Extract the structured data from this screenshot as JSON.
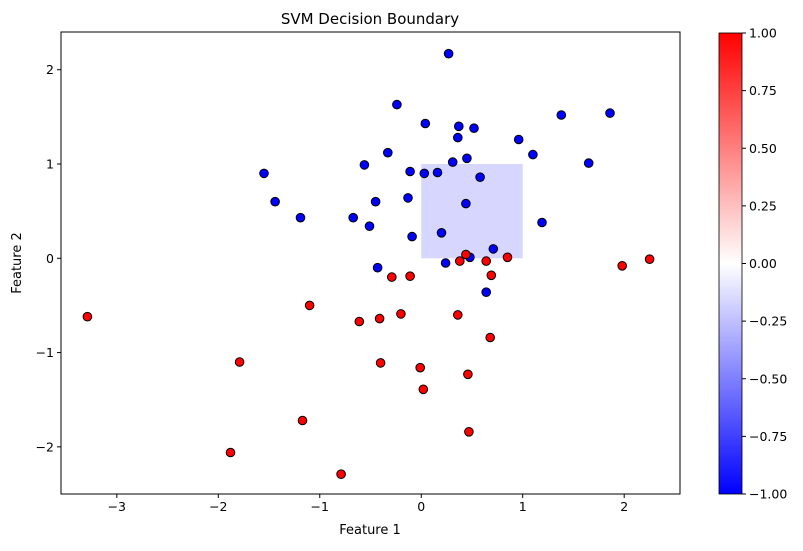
{
  "chart_data": {
    "type": "scatter",
    "title": "SVM Decision Boundary",
    "xlabel": "Feature 1",
    "ylabel": "Feature 2",
    "xlim": [
      -3.55,
      2.55
    ],
    "ylim": [
      -2.5,
      2.4
    ],
    "xticks": [
      -3,
      -2,
      -1,
      0,
      1,
      2
    ],
    "yticks": [
      -2,
      -1,
      0,
      1,
      2
    ],
    "grid": false,
    "decision_region": {
      "x": [
        0,
        1
      ],
      "y": [
        0,
        1
      ],
      "value": -0.2,
      "color": "#d6d6fe"
    },
    "colors": {
      "class_blue": "#0000ff",
      "class_red": "#ff0000",
      "marker_edge": "#000000"
    },
    "series": [
      {
        "class": -1,
        "points": [
          [
            0.27,
            2.17
          ],
          [
            -0.24,
            1.63
          ],
          [
            0.04,
            1.43
          ],
          [
            0.37,
            1.4
          ],
          [
            0.52,
            1.38
          ],
          [
            0.36,
            1.28
          ],
          [
            0.96,
            1.26
          ],
          [
            1.38,
            1.52
          ],
          [
            1.86,
            1.54
          ],
          [
            -0.33,
            1.12
          ],
          [
            1.1,
            1.1
          ],
          [
            0.45,
            1.06
          ],
          [
            0.31,
            1.02
          ],
          [
            -0.56,
            0.99
          ],
          [
            1.65,
            1.01
          ],
          [
            -1.55,
            0.9
          ],
          [
            -0.11,
            0.92
          ],
          [
            0.03,
            0.9
          ],
          [
            0.16,
            0.91
          ],
          [
            0.58,
            0.86
          ],
          [
            -0.13,
            0.64
          ],
          [
            -1.44,
            0.6
          ],
          [
            -0.45,
            0.6
          ],
          [
            0.44,
            0.58
          ],
          [
            -0.67,
            0.43
          ],
          [
            -1.19,
            0.43
          ],
          [
            -0.51,
            0.34
          ],
          [
            1.19,
            0.38
          ],
          [
            0.2,
            0.27
          ],
          [
            -0.09,
            0.23
          ],
          [
            0.71,
            0.1
          ],
          [
            0.24,
            -0.05
          ],
          [
            0.48,
            0.01
          ],
          [
            -0.43,
            -0.1
          ],
          [
            0.64,
            -0.36
          ]
        ]
      },
      {
        "class": 1,
        "points": [
          [
            0.44,
            0.04
          ],
          [
            0.38,
            -0.03
          ],
          [
            0.64,
            -0.03
          ],
          [
            0.85,
            0.01
          ],
          [
            2.25,
            -0.01
          ],
          [
            1.98,
            -0.08
          ],
          [
            0.69,
            -0.18
          ],
          [
            -0.29,
            -0.2
          ],
          [
            -0.11,
            -0.19
          ],
          [
            -1.1,
            -0.5
          ],
          [
            -0.2,
            -0.59
          ],
          [
            0.36,
            -0.6
          ],
          [
            -0.41,
            -0.64
          ],
          [
            -0.61,
            -0.67
          ],
          [
            -3.29,
            -0.62
          ],
          [
            0.68,
            -0.84
          ],
          [
            -1.79,
            -1.1
          ],
          [
            -0.4,
            -1.11
          ],
          [
            -0.01,
            -1.16
          ],
          [
            0.46,
            -1.23
          ],
          [
            0.02,
            -1.39
          ],
          [
            -1.17,
            -1.72
          ],
          [
            0.47,
            -1.84
          ],
          [
            -1.88,
            -2.06
          ],
          [
            -0.79,
            -2.29
          ]
        ]
      }
    ],
    "colorbar": {
      "range": [
        -1.0,
        1.0
      ],
      "ticks": [
        "1.00",
        "0.75",
        "0.50",
        "0.25",
        "0.00",
        "−0.25",
        "−0.50",
        "−0.75",
        "−1.00"
      ],
      "colormap": "bwr"
    }
  }
}
